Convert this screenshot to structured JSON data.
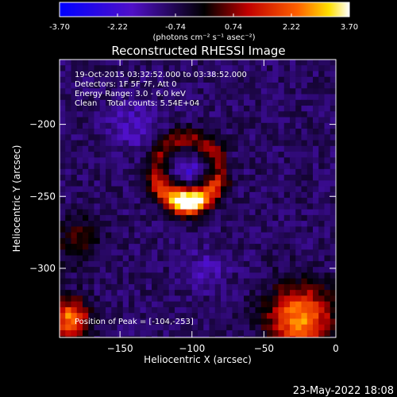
{
  "chart_data": {
    "type": "heatmap",
    "title": "Reconstructed RHESSI Image",
    "xlabel": "Heliocentric X (arcsec)",
    "ylabel": "Heliocentric Y (arcsec)",
    "xlim": [
      -192,
      0
    ],
    "ylim": [
      -348,
      -155
    ],
    "xticks": [
      -150,
      -100,
      -50,
      0
    ],
    "yticks": [
      -200,
      -250,
      -300
    ],
    "colorbar": {
      "min": -3.7,
      "max": 3.7,
      "ticks": [
        "-3.70",
        "-2.22",
        "-0.74",
        "0.74",
        "2.22",
        "3.70"
      ],
      "unit_label": "(photons cm⁻² s⁻¹ asec⁻²)"
    },
    "annotations": [
      "19-Oct-2015 03:32:52.000 to 03:38:52.000",
      "Detectors: 1F 5F 7F, Att 0",
      "Energy Range: 3.0 - 6.0 keV",
      "Clean    Total counts: 5.54E+04"
    ],
    "peak_label": "Position of Peak = [-104,-253]",
    "peak": {
      "x": -104,
      "y": -253,
      "value": 3.7
    },
    "features": {
      "ring_center": {
        "x": -103,
        "y": -232
      },
      "ring_radius_arcsec": 22,
      "background_level": -0.9,
      "hot_corner_bottom_right": {
        "x": -25,
        "y": -335
      },
      "hot_corner_bottom_left": {
        "x": -185,
        "y": -335
      }
    },
    "colors": {
      "low": "#0000ff",
      "mid_low": "#6a0fb0",
      "mid": "#000000",
      "high_red": "#ff2000",
      "high_yellow": "#ffe000",
      "top": "#ffffff"
    }
  },
  "footer": {
    "date": "23-May-2022 18:08"
  }
}
